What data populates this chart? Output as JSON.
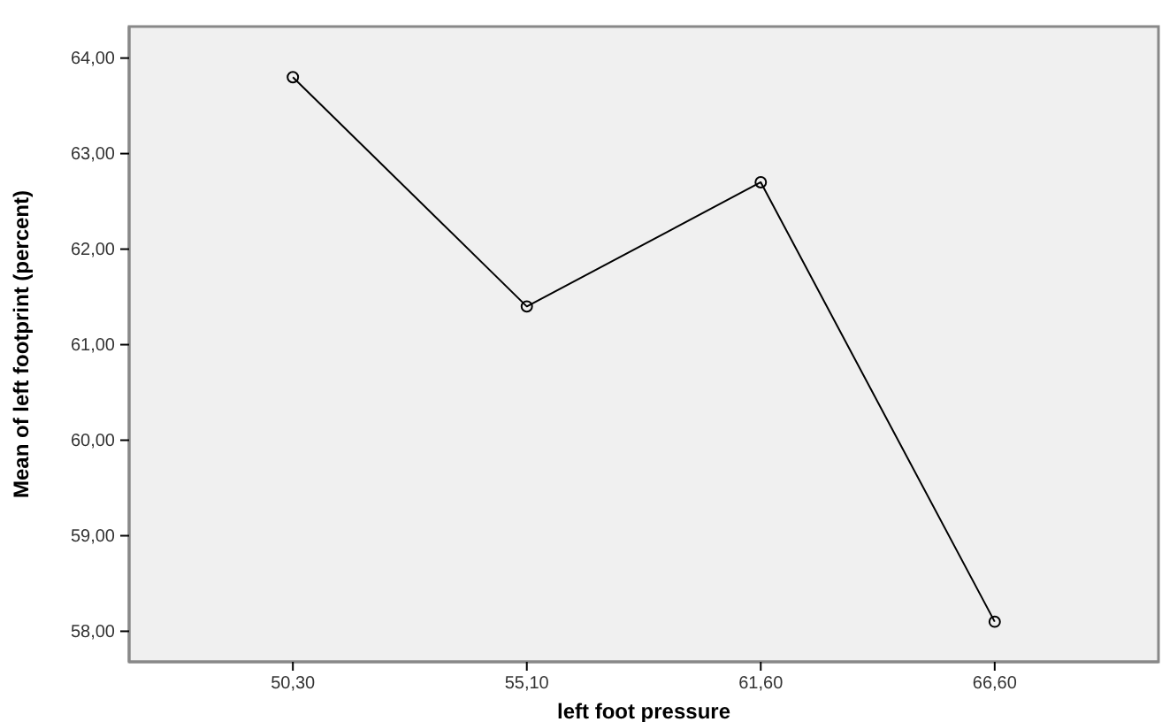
{
  "chart_data": {
    "type": "line",
    "xlabel": "left foot pressure",
    "ylabel": "Mean of left footprint (percent)",
    "categories": [
      "50,30",
      "55,10",
      "61,60",
      "66,60"
    ],
    "series": [
      {
        "color": "#000000",
        "values": [
          63.8,
          61.4,
          62.7,
          58.1
        ]
      }
    ],
    "ylim": [
      57.68,
      64.33
    ],
    "yticks": [
      {
        "value": 58,
        "label": "58,00"
      },
      {
        "value": 59,
        "label": "59,00"
      },
      {
        "value": 60,
        "label": "60,00"
      },
      {
        "value": 61,
        "label": "61,00"
      },
      {
        "value": 62,
        "label": "62,00"
      },
      {
        "value": 63,
        "label": "63,00"
      },
      {
        "value": 64,
        "label": "64,00"
      }
    ],
    "marker": "circle",
    "line_style": "solid"
  }
}
